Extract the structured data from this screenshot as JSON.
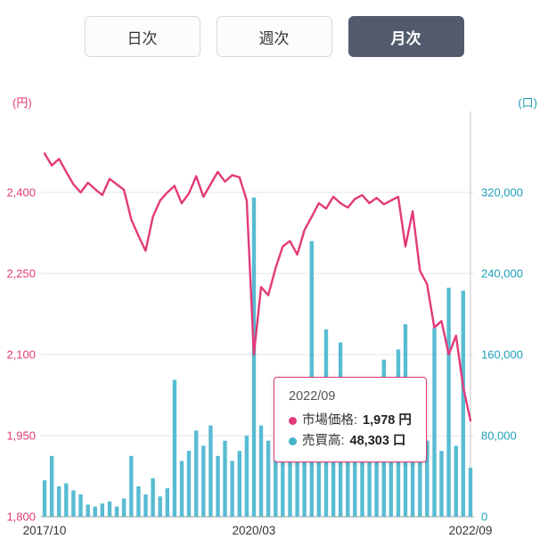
{
  "period_tabs": {
    "items": [
      {
        "label": "日次"
      },
      {
        "label": "週次"
      },
      {
        "label": "月次"
      }
    ],
    "selected": "月次"
  },
  "tooltip": {
    "date": "2022/09",
    "price_label": "市場価格:",
    "price_value": "1,978 円",
    "volume_label": "売買高:",
    "volume_value": "48,303 口"
  },
  "chart_data": {
    "type": "line+bar",
    "title": "",
    "x_ticks": [
      {
        "label": "2017/10",
        "index": 0
      },
      {
        "label": "2020/03",
        "index": 29
      },
      {
        "label": "2022/09",
        "index": 59
      }
    ],
    "left_axis": {
      "unit": "(円)",
      "min": 1800,
      "max": 2550,
      "ticks": [
        1800,
        1950,
        2100,
        2250,
        2400
      ],
      "tick_labels": [
        "1,800",
        "1,950",
        "2,100",
        "2,250",
        "2,400"
      ]
    },
    "right_axis": {
      "unit": "(口)",
      "min": 0,
      "max": 400000,
      "ticks": [
        0,
        80000,
        160000,
        240000,
        320000
      ],
      "tick_labels": [
        "0",
        "80,000",
        "160,000",
        "240,000",
        "320,000"
      ]
    },
    "hover_index": 59,
    "grid": true,
    "legend_position": "none",
    "colors": {
      "grid": "#e5e5e5",
      "axis_line": "#9b9b9b",
      "crosshair": "#c6c6c6",
      "left_label": "#e23a78",
      "right_label": "#1d9fb8",
      "x_label": "#333333"
    },
    "series": [
      {
        "name": "市場価格",
        "type": "line",
        "axis": "left",
        "color": "#e23a78",
        "values": [
          2472,
          2450,
          2462,
          2438,
          2415,
          2400,
          2418,
          2406,
          2395,
          2425,
          2415,
          2405,
          2350,
          2320,
          2292,
          2355,
          2385,
          2400,
          2412,
          2380,
          2398,
          2430,
          2392,
          2415,
          2438,
          2420,
          2432,
          2428,
          2385,
          2100,
          2225,
          2210,
          2260,
          2300,
          2310,
          2285,
          2330,
          2355,
          2380,
          2370,
          2392,
          2380,
          2372,
          2388,
          2395,
          2380,
          2390,
          2378,
          2385,
          2392,
          2300,
          2365,
          2255,
          2230,
          2150,
          2162,
          2100,
          2135,
          2040,
          1978
        ]
      },
      {
        "name": "売買高",
        "type": "bar",
        "axis": "right",
        "color": "#58bcd2",
        "values": [
          36000,
          60000,
          30000,
          33000,
          26000,
          22000,
          12000,
          10000,
          13000,
          15000,
          10000,
          18000,
          60000,
          30000,
          22000,
          38000,
          20000,
          28000,
          135000,
          55000,
          65000,
          85000,
          70000,
          90000,
          60000,
          75000,
          55000,
          65000,
          80000,
          315000,
          90000,
          75000,
          60000,
          85000,
          95000,
          80000,
          95000,
          272000,
          90000,
          185000,
          110000,
          172000,
          85000,
          70000,
          62000,
          55000,
          80000,
          155000,
          70000,
          165000,
          190000,
          80000,
          85000,
          75000,
          186000,
          65000,
          226000,
          70000,
          223000,
          48303
        ]
      }
    ]
  }
}
